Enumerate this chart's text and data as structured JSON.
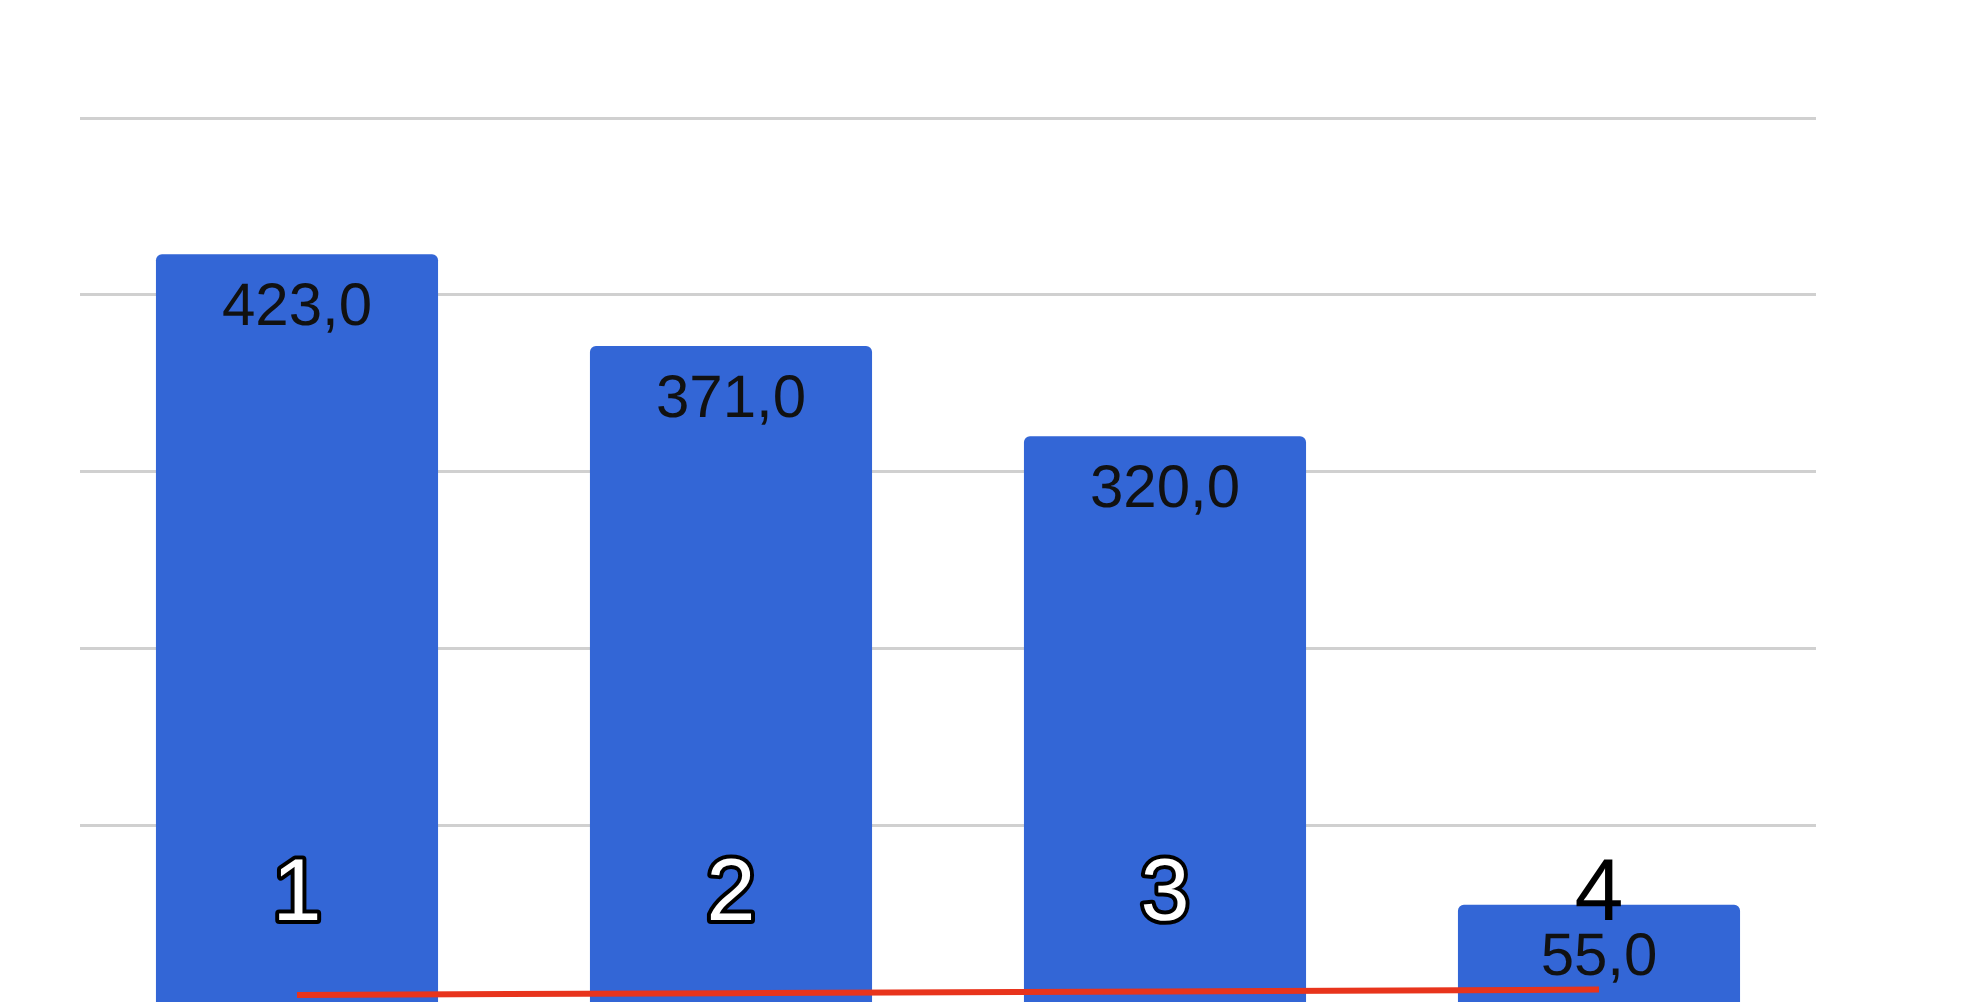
{
  "chart_data": {
    "type": "bar",
    "categories": [
      "1",
      "2",
      "3",
      "4"
    ],
    "series": [
      {
        "color": "#3366d6",
        "values": [
          423,
          371,
          320,
          55
        ],
        "value_labels": [
          "423,0",
          "371,0",
          "320,0",
          "55,0"
        ]
      },
      {
        "type": "line",
        "color": "#e8341c",
        "values": [
          4,
          5,
          6,
          7
        ]
      }
    ],
    "ylim": [
      0,
      500
    ],
    "yticks": [
      {
        "value": 100,
        "label": null
      },
      {
        "value": 200,
        "label": null
      },
      {
        "value": 300,
        "label": null
      },
      {
        "value": 400,
        "label": null
      },
      {
        "value": 500,
        "label": null
      }
    ],
    "grid": "y",
    "marker": "none",
    "legend": false
  }
}
